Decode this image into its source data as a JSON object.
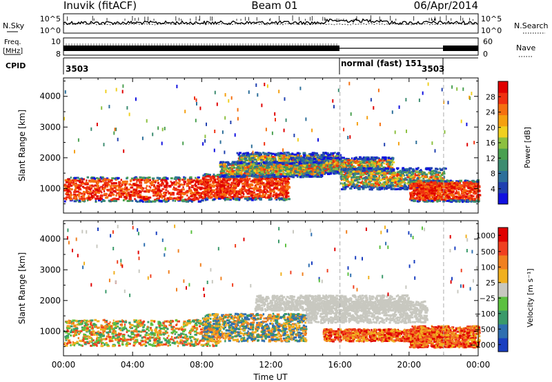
{
  "header": {
    "station": "Inuvik (fitACF)",
    "beam": "Beam 01",
    "date": "06/Apr/2014"
  },
  "noise_panel": {
    "left_label": "N.Sky",
    "left_ticks": [
      "10^5",
      "10^0"
    ],
    "right_label": "N.Search",
    "right_ticks": [
      "10^5",
      "10^0"
    ]
  },
  "freq_panel": {
    "left_label_top": "Freq.",
    "left_label_bottom": "[MHz]",
    "left_ticks": [
      "10",
      "8"
    ],
    "right_label": "Nave",
    "right_ticks": [
      "60",
      "0"
    ]
  },
  "cpid_panel": {
    "label": "CPID",
    "segments": [
      {
        "start_hour": 0,
        "end_hour": 16,
        "text": "3503"
      },
      {
        "start_hour": 16,
        "end_hour": 22,
        "text": "normal (fast) 151"
      },
      {
        "start_hour": 22,
        "end_hour": 24,
        "text": "3503"
      }
    ]
  },
  "chart_data": [
    {
      "type": "heatmap",
      "name": "power",
      "ylabel": "Slant Range [km]",
      "y_ticks": [
        1000,
        2000,
        3000,
        4000
      ],
      "ylim": [
        200,
        4600
      ],
      "xlim": [
        0,
        24
      ],
      "colorbar": {
        "label": "Power [dB]",
        "ticks": [
          "4",
          "8",
          "12",
          "16",
          "20",
          "24",
          "28"
        ],
        "colors": [
          "#1010e0",
          "#2040b0",
          "#2d6f9a",
          "#3c8c70",
          "#4aa050",
          "#8cc040",
          "#f0d020",
          "#f5a010",
          "#f57010",
          "#f03010",
          "#e00000"
        ]
      },
      "dashed_lines_hours": [
        16,
        22
      ]
    },
    {
      "type": "heatmap",
      "name": "velocity",
      "ylabel": "Slant Range [km]",
      "y_ticks": [
        1000,
        2000,
        3000,
        4000
      ],
      "ylim": [
        200,
        4600
      ],
      "xlim": [
        0,
        24
      ],
      "xlabel": "Time UT",
      "x_ticks": [
        "00:00",
        "04:00",
        "08:00",
        "12:00",
        "16:00",
        "20:00",
        "00:00"
      ],
      "x_tick_hours": [
        0,
        4,
        8,
        12,
        16,
        20,
        24
      ],
      "colorbar": {
        "label": "Velocity [m s⁻¹]",
        "ticks": [
          "1000",
          "500",
          "100",
          "25",
          "−25",
          "−100",
          "−500",
          "−1000"
        ],
        "colors": [
          "#1a3fc0",
          "#2f6fb0",
          "#3a9a6a",
          "#5cc040",
          "#c8c8c0",
          "#f0b020",
          "#f08020",
          "#f04020",
          "#e00000"
        ]
      },
      "dashed_lines_hours": [
        16,
        22
      ]
    }
  ]
}
